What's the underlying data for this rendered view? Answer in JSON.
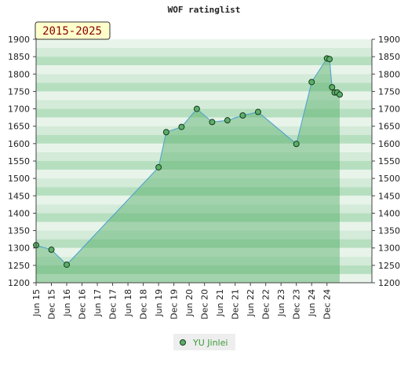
{
  "chart_data": {
    "type": "area",
    "title": "WOF ratinglist",
    "range_badge": "2015-2025",
    "x_ticks": [
      "Jun 15",
      "Dec 15",
      "Jun 16",
      "Dec 16",
      "Jun 17",
      "Dec 17",
      "Jun 18",
      "Dec 18",
      "Jun 19",
      "Dec 19",
      "Jun 20",
      "Dec 20",
      "Jun 21",
      "Dec 21",
      "Jun 22",
      "Dec 22",
      "Jun 23",
      "Dec 23",
      "Jun 24",
      "Dec 24"
    ],
    "y_ticks": [
      1200,
      1250,
      1300,
      1350,
      1400,
      1450,
      1500,
      1550,
      1600,
      1650,
      1700,
      1750,
      1800,
      1850,
      1900
    ],
    "ylim": [
      1200,
      1900
    ],
    "y_axis_right": true,
    "grid": true,
    "legend_position": "bottom-center",
    "series": [
      {
        "name": "YU Jinlei",
        "color": "#5aaf6a",
        "points": [
          [
            "Jun 15",
            1308
          ],
          [
            "Dec 15",
            1295
          ],
          [
            "Jun 16",
            1252
          ],
          [
            "Jun 19",
            1532
          ],
          [
            "Sep 19",
            1633
          ],
          [
            "Mar 20",
            1648
          ],
          [
            "Sep 20",
            1700
          ],
          [
            "Mar 21",
            1662
          ],
          [
            "Sep 21",
            1667
          ],
          [
            "Mar 22",
            1681
          ],
          [
            "Sep 22",
            1691
          ],
          [
            "Dec 23",
            1599
          ],
          [
            "Jun 24",
            1777
          ],
          [
            "Dec 24",
            1845
          ],
          [
            "Jan 25",
            1843
          ],
          [
            "Feb 25",
            1762
          ],
          [
            "Mar 25",
            1747
          ],
          [
            "Apr 25",
            1747
          ],
          [
            "May 25",
            1741
          ]
        ]
      }
    ]
  }
}
